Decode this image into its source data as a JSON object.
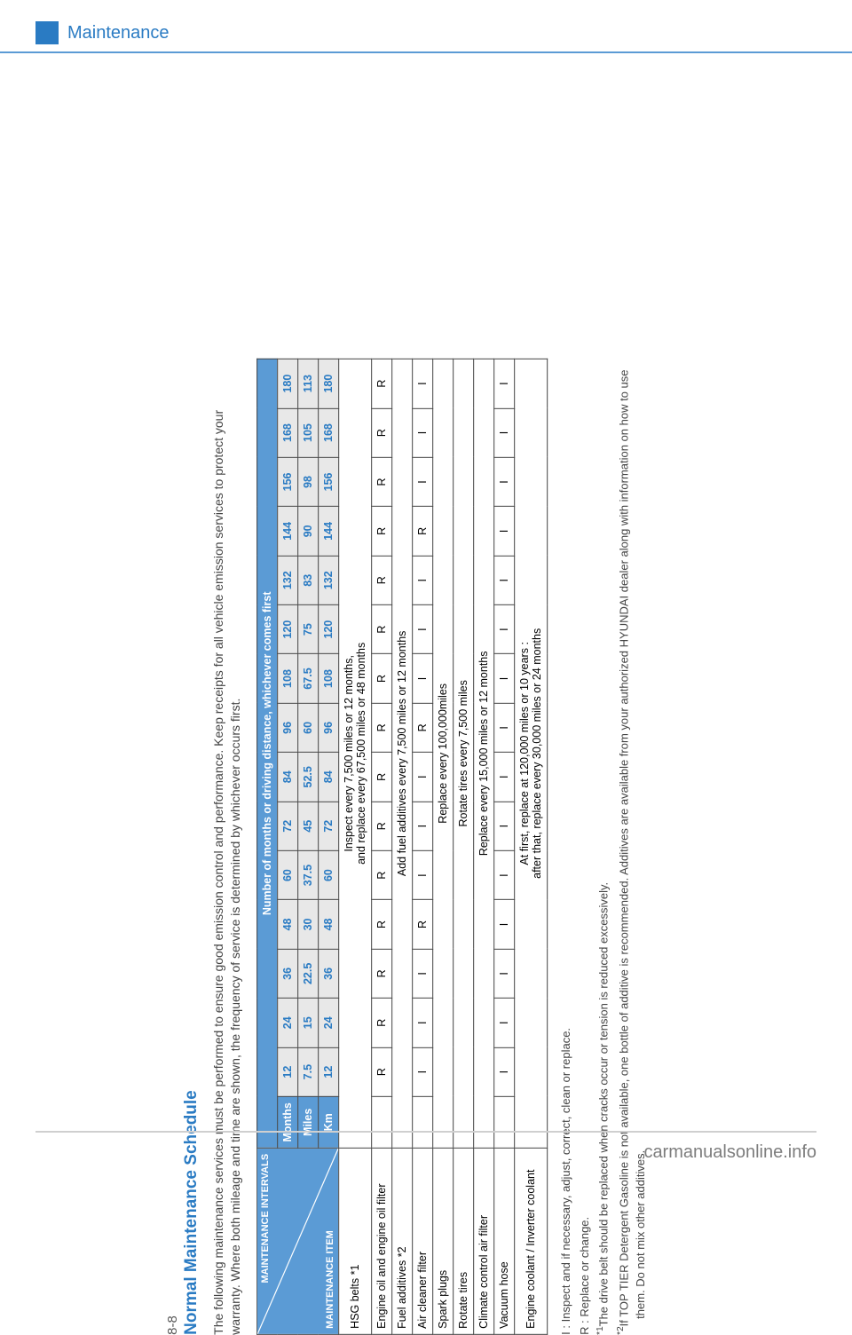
{
  "header": {
    "chapter_title": "Maintenance"
  },
  "footer": {
    "watermark": "carmanualsonline.info"
  },
  "page_number": "8-8",
  "section_title": "Normal Maintenance Schedule",
  "intro_text": "The following maintenance services must be performed to ensure good emission control and performance. Keep receipts for all vehicle emission services to protect your warranty. Where both mileage and time are shown, the frequency of service is determined by whichever occurs first.",
  "table": {
    "corner_top": "MAINTENANCE INTERVALS",
    "corner_bottom": "MAINTENANCE ITEM",
    "span_header": "Number of months or driving distance, whichever comes first",
    "unit_rows": [
      {
        "label": "Months",
        "values": [
          "12",
          "24",
          "36",
          "48",
          "60",
          "72",
          "84",
          "96",
          "108",
          "120",
          "132",
          "144",
          "156",
          "168",
          "180"
        ]
      },
      {
        "label": "Miles",
        "values": [
          "7.5",
          "15",
          "22.5",
          "30",
          "37.5",
          "45",
          "52.5",
          "60",
          "67.5",
          "75",
          "83",
          "90",
          "98",
          "105",
          "113"
        ]
      },
      {
        "label": "Km",
        "values": [
          "12",
          "24",
          "36",
          "48",
          "60",
          "72",
          "84",
          "96",
          "108",
          "120",
          "132",
          "144",
          "156",
          "168",
          "180"
        ]
      }
    ],
    "rows": [
      {
        "item": "HSG belts *1",
        "span_text": "Inspect every 7,500 miles or 12 months,\nand replace every 67,500 miles or 48 months"
      },
      {
        "item": "Engine oil and engine oil filter",
        "cells": [
          "R",
          "R",
          "R",
          "R",
          "R",
          "R",
          "R",
          "R",
          "R",
          "R",
          "R",
          "R",
          "R",
          "R",
          "R"
        ]
      },
      {
        "item": "Fuel additives *2",
        "span_text": "Add fuel additives every 7,500 miles or 12 months"
      },
      {
        "item": "Air cleaner filter",
        "cells": [
          "I",
          "I",
          "I",
          "R",
          "I",
          "I",
          "I",
          "R",
          "I",
          "I",
          "I",
          "R",
          "I",
          "I",
          "I"
        ]
      },
      {
        "item": "Spark plugs",
        "span_text": "Replace every 100,000miles"
      },
      {
        "item": "Rotate tires",
        "span_text": "Rotate tires every 7,500 miles"
      },
      {
        "item": "Climate control air filter",
        "span_text": "Replace every 15,000 miles or 12 months"
      },
      {
        "item": "Vacuum hose",
        "cells": [
          "I",
          "I",
          "I",
          "I",
          "I",
          "I",
          "I",
          "I",
          "I",
          "I",
          "I",
          "I",
          "I",
          "I",
          "I"
        ]
      },
      {
        "item": "Engine coolant / Inverter coolant",
        "span_text": "At first, replace at 120,000 miles or 10 years :\nafter that, replace every 30,000 miles or 24 months"
      }
    ]
  },
  "legend": {
    "l1": "I : Inspect and if necessary, adjust, correct, clean or replace.",
    "l2": "R : Replace or change.",
    "l3": "*1:  The drive belt should be replaced when cracks occur or tension is reduced excessively.",
    "l4": "*2 : If TOP TIER Detergent Gasoline is not available, one bottle of additive is recommended. Additives are available from your authorized HYUNDAI dealer along with information on how to use them. Do not mix other additives."
  },
  "colors": {
    "accent": "#2a7bc3",
    "header_bg": "#5b9bd5",
    "num_row_bg": "#e8e8e8",
    "border": "#444444",
    "body_text": "#444444",
    "footer_text": "#7d7d7d"
  }
}
